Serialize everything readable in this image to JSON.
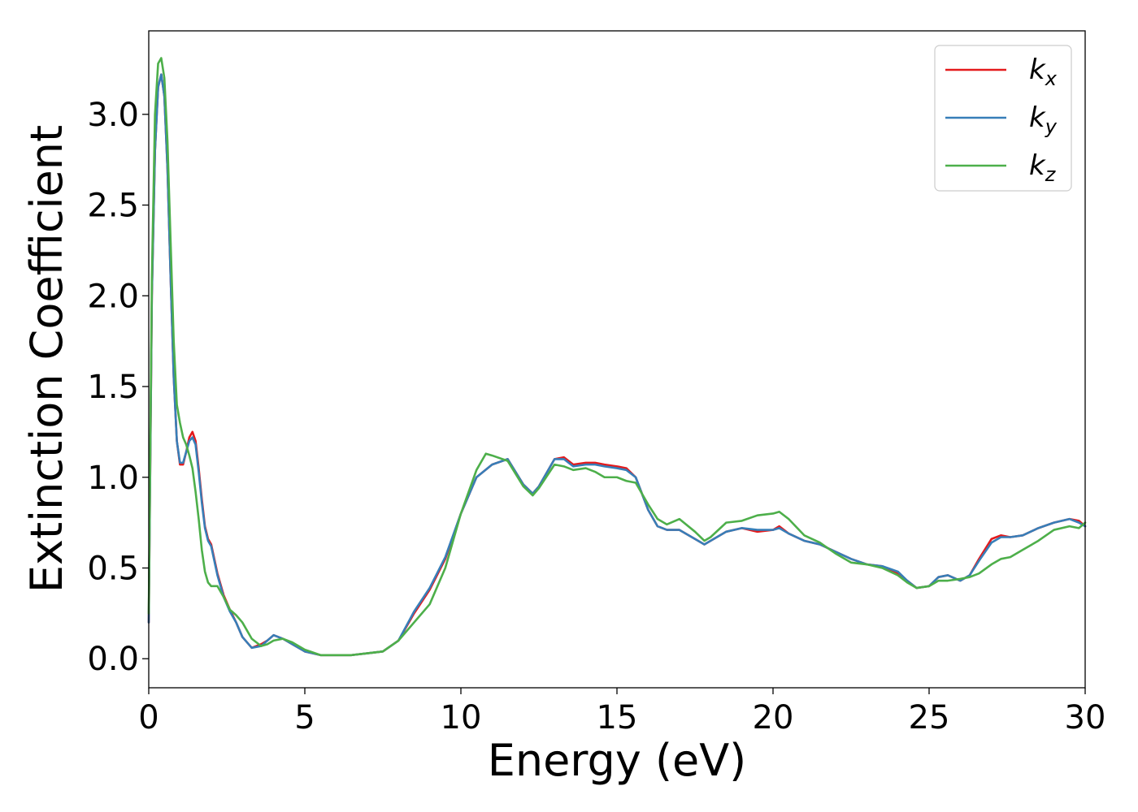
{
  "chart_data": {
    "type": "line",
    "title": "",
    "xlabel": "Energy (eV)",
    "ylabel": "Extinction Coefficient",
    "xlim": [
      0,
      30
    ],
    "ylim": [
      -0.16,
      3.46
    ],
    "xticks": [
      0,
      5,
      10,
      15,
      20,
      25,
      30
    ],
    "xtick_labels": [
      "0",
      "5",
      "10",
      "15",
      "20",
      "25",
      "30"
    ],
    "yticks": [
      0.0,
      0.5,
      1.0,
      1.5,
      2.0,
      2.5,
      3.0
    ],
    "ytick_labels": [
      "0.0",
      "0.5",
      "1.0",
      "1.5",
      "2.0",
      "2.5",
      "3.0"
    ],
    "grid": false,
    "legend": {
      "position": "top-right",
      "entries": [
        {
          "base": "k",
          "sub": "x"
        },
        {
          "base": "k",
          "sub": "y"
        },
        {
          "base": "k",
          "sub": "z"
        }
      ]
    },
    "series": [
      {
        "name": "kx",
        "color": "#e41a1c",
        "x": [
          0,
          0.1,
          0.2,
          0.3,
          0.4,
          0.5,
          0.6,
          0.7,
          0.8,
          0.9,
          1.0,
          1.1,
          1.2,
          1.3,
          1.4,
          1.5,
          1.6,
          1.7,
          1.8,
          1.9,
          2.0,
          2.2,
          2.4,
          2.6,
          2.8,
          3.0,
          3.3,
          3.6,
          3.8,
          4.0,
          4.3,
          4.6,
          5.0,
          5.5,
          6.0,
          6.5,
          7.0,
          7.5,
          8.0,
          8.5,
          9.0,
          9.5,
          10.0,
          10.5,
          11.0,
          11.5,
          12.0,
          12.3,
          12.5,
          13.0,
          13.3,
          13.6,
          14.0,
          14.3,
          14.6,
          15.0,
          15.3,
          15.6,
          16.0,
          16.3,
          16.6,
          17.0,
          17.5,
          17.8,
          18.0,
          18.5,
          19.0,
          19.5,
          20.0,
          20.2,
          20.5,
          21.0,
          21.5,
          22.0,
          22.5,
          23.0,
          23.5,
          24.0,
          24.3,
          24.6,
          25.0,
          25.3,
          25.6,
          26.0,
          26.3,
          26.6,
          27.0,
          27.3,
          27.6,
          28.0,
          28.5,
          29.0,
          29.5,
          29.8,
          30.0
        ],
        "y": [
          0.2,
          2.0,
          2.8,
          3.15,
          3.22,
          3.1,
          2.7,
          2.1,
          1.55,
          1.2,
          1.07,
          1.07,
          1.14,
          1.22,
          1.25,
          1.2,
          1.05,
          0.88,
          0.73,
          0.66,
          0.63,
          0.47,
          0.35,
          0.27,
          0.2,
          0.12,
          0.06,
          0.08,
          0.1,
          0.13,
          0.11,
          0.08,
          0.04,
          0.02,
          0.02,
          0.02,
          0.03,
          0.04,
          0.1,
          0.25,
          0.38,
          0.55,
          0.8,
          1.0,
          1.07,
          1.1,
          0.96,
          0.91,
          0.95,
          1.1,
          1.11,
          1.07,
          1.08,
          1.08,
          1.07,
          1.06,
          1.05,
          1.0,
          0.82,
          0.73,
          0.71,
          0.71,
          0.66,
          0.63,
          0.65,
          0.7,
          0.72,
          0.7,
          0.71,
          0.73,
          0.69,
          0.65,
          0.63,
          0.59,
          0.55,
          0.52,
          0.51,
          0.47,
          0.43,
          0.39,
          0.4,
          0.45,
          0.46,
          0.43,
          0.46,
          0.55,
          0.66,
          0.68,
          0.67,
          0.68,
          0.72,
          0.75,
          0.77,
          0.76,
          0.73
        ]
      },
      {
        "name": "ky",
        "color": "#377eb8",
        "x": [
          0,
          0.1,
          0.2,
          0.3,
          0.4,
          0.5,
          0.6,
          0.7,
          0.8,
          0.9,
          1.0,
          1.1,
          1.2,
          1.3,
          1.4,
          1.5,
          1.6,
          1.7,
          1.8,
          1.9,
          2.0,
          2.2,
          2.4,
          2.6,
          2.8,
          3.0,
          3.3,
          3.6,
          3.8,
          4.0,
          4.3,
          4.6,
          5.0,
          5.5,
          6.0,
          6.5,
          7.0,
          7.5,
          8.0,
          8.5,
          9.0,
          9.5,
          10.0,
          10.5,
          11.0,
          11.5,
          12.0,
          12.3,
          12.5,
          13.0,
          13.3,
          13.6,
          14.0,
          14.3,
          14.6,
          15.0,
          15.3,
          15.6,
          16.0,
          16.3,
          16.6,
          17.0,
          17.5,
          17.8,
          18.0,
          18.5,
          19.0,
          19.5,
          20.0,
          20.2,
          20.5,
          21.0,
          21.5,
          22.0,
          22.5,
          23.0,
          23.5,
          24.0,
          24.3,
          24.6,
          25.0,
          25.3,
          25.6,
          26.0,
          26.3,
          26.6,
          27.0,
          27.3,
          27.6,
          28.0,
          28.5,
          29.0,
          29.5,
          29.8,
          30.0
        ],
        "y": [
          0.2,
          2.0,
          2.8,
          3.15,
          3.22,
          3.1,
          2.7,
          2.1,
          1.55,
          1.2,
          1.08,
          1.08,
          1.14,
          1.2,
          1.22,
          1.18,
          1.03,
          0.86,
          0.72,
          0.65,
          0.62,
          0.46,
          0.34,
          0.26,
          0.2,
          0.12,
          0.06,
          0.07,
          0.1,
          0.13,
          0.11,
          0.08,
          0.04,
          0.02,
          0.02,
          0.02,
          0.03,
          0.04,
          0.1,
          0.26,
          0.39,
          0.56,
          0.8,
          1.0,
          1.07,
          1.1,
          0.96,
          0.91,
          0.95,
          1.1,
          1.1,
          1.06,
          1.07,
          1.07,
          1.06,
          1.05,
          1.04,
          1.0,
          0.82,
          0.73,
          0.71,
          0.71,
          0.66,
          0.63,
          0.65,
          0.7,
          0.72,
          0.71,
          0.71,
          0.72,
          0.69,
          0.65,
          0.63,
          0.59,
          0.55,
          0.52,
          0.51,
          0.48,
          0.43,
          0.39,
          0.4,
          0.45,
          0.46,
          0.43,
          0.46,
          0.54,
          0.64,
          0.67,
          0.67,
          0.68,
          0.72,
          0.75,
          0.77,
          0.75,
          0.73
        ]
      },
      {
        "name": "kz",
        "color": "#4daf4a",
        "x": [
          0,
          0.1,
          0.2,
          0.3,
          0.4,
          0.5,
          0.6,
          0.7,
          0.8,
          0.9,
          1.0,
          1.1,
          1.2,
          1.3,
          1.4,
          1.5,
          1.6,
          1.7,
          1.8,
          1.9,
          2.0,
          2.2,
          2.4,
          2.6,
          2.8,
          3.0,
          3.3,
          3.6,
          3.8,
          4.0,
          4.3,
          4.6,
          5.0,
          5.5,
          6.0,
          6.5,
          7.0,
          7.5,
          8.0,
          8.5,
          9.0,
          9.5,
          10.0,
          10.5,
          10.8,
          11.0,
          11.5,
          12.0,
          12.3,
          12.5,
          13.0,
          13.3,
          13.6,
          14.0,
          14.3,
          14.6,
          15.0,
          15.3,
          15.6,
          16.0,
          16.3,
          16.6,
          17.0,
          17.5,
          17.8,
          18.0,
          18.5,
          19.0,
          19.5,
          20.0,
          20.2,
          20.5,
          21.0,
          21.5,
          22.0,
          22.5,
          23.0,
          23.5,
          24.0,
          24.3,
          24.6,
          25.0,
          25.3,
          25.6,
          26.0,
          26.3,
          26.6,
          27.0,
          27.3,
          27.6,
          28.0,
          28.5,
          29.0,
          29.5,
          29.8,
          30.0
        ],
        "y": [
          0.25,
          2.1,
          3.0,
          3.28,
          3.31,
          3.2,
          2.85,
          2.3,
          1.75,
          1.4,
          1.3,
          1.22,
          1.18,
          1.12,
          1.05,
          0.92,
          0.77,
          0.6,
          0.48,
          0.42,
          0.4,
          0.4,
          0.34,
          0.27,
          0.24,
          0.2,
          0.11,
          0.07,
          0.08,
          0.1,
          0.11,
          0.09,
          0.05,
          0.02,
          0.02,
          0.02,
          0.03,
          0.04,
          0.1,
          0.2,
          0.3,
          0.5,
          0.8,
          1.04,
          1.13,
          1.12,
          1.09,
          0.95,
          0.9,
          0.94,
          1.07,
          1.06,
          1.04,
          1.05,
          1.03,
          1.0,
          1.0,
          0.98,
          0.97,
          0.85,
          0.77,
          0.74,
          0.77,
          0.7,
          0.65,
          0.67,
          0.75,
          0.76,
          0.79,
          0.8,
          0.81,
          0.77,
          0.68,
          0.64,
          0.58,
          0.53,
          0.52,
          0.5,
          0.46,
          0.42,
          0.39,
          0.4,
          0.43,
          0.43,
          0.44,
          0.45,
          0.47,
          0.52,
          0.55,
          0.56,
          0.6,
          0.65,
          0.71,
          0.73,
          0.72,
          0.75
        ]
      }
    ]
  }
}
